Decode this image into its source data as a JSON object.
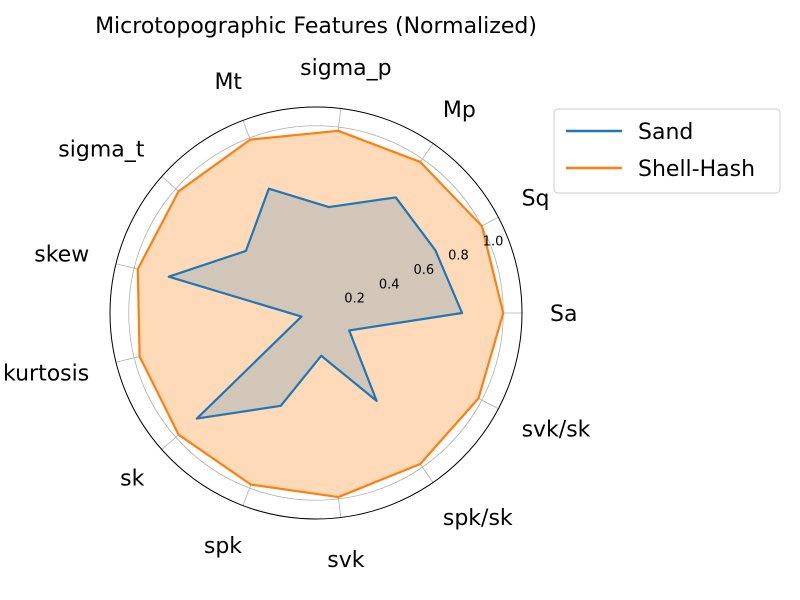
{
  "chart_data": {
    "type": "radar",
    "title": "Microtopographic Features (Normalized)",
    "categories": [
      "Sa",
      "Sq",
      "Mp",
      "sigma_p",
      "Mt",
      "sigma_t",
      "skew",
      "kurtosis",
      "sk",
      "spk",
      "svk",
      "spk/sk",
      "svk/sk"
    ],
    "radial_ticks": [
      "0.2",
      "0.4",
      "0.6",
      "0.8",
      "1.0"
    ],
    "rlim": [
      0,
      1.1
    ],
    "grid": true,
    "legend_position": "outside-top-right",
    "series": [
      {
        "name": "Sand",
        "color": "#1f77b4",
        "values": [
          0.78,
          0.72,
          0.75,
          0.57,
          0.71,
          0.5,
          0.81,
          0.08,
          0.85,
          0.53,
          0.23,
          0.57,
          0.2
        ],
        "fill": false
      },
      {
        "name": "Shell-Hash",
        "color": "#ff7f0e",
        "fill_color": "#ffdab9",
        "values": [
          1.0,
          1.0,
          0.98,
          0.98,
          0.99,
          0.98,
          0.98,
          0.97,
          0.98,
          0.98,
          0.99,
          0.98,
          0.98
        ],
        "fill": true
      }
    ]
  }
}
